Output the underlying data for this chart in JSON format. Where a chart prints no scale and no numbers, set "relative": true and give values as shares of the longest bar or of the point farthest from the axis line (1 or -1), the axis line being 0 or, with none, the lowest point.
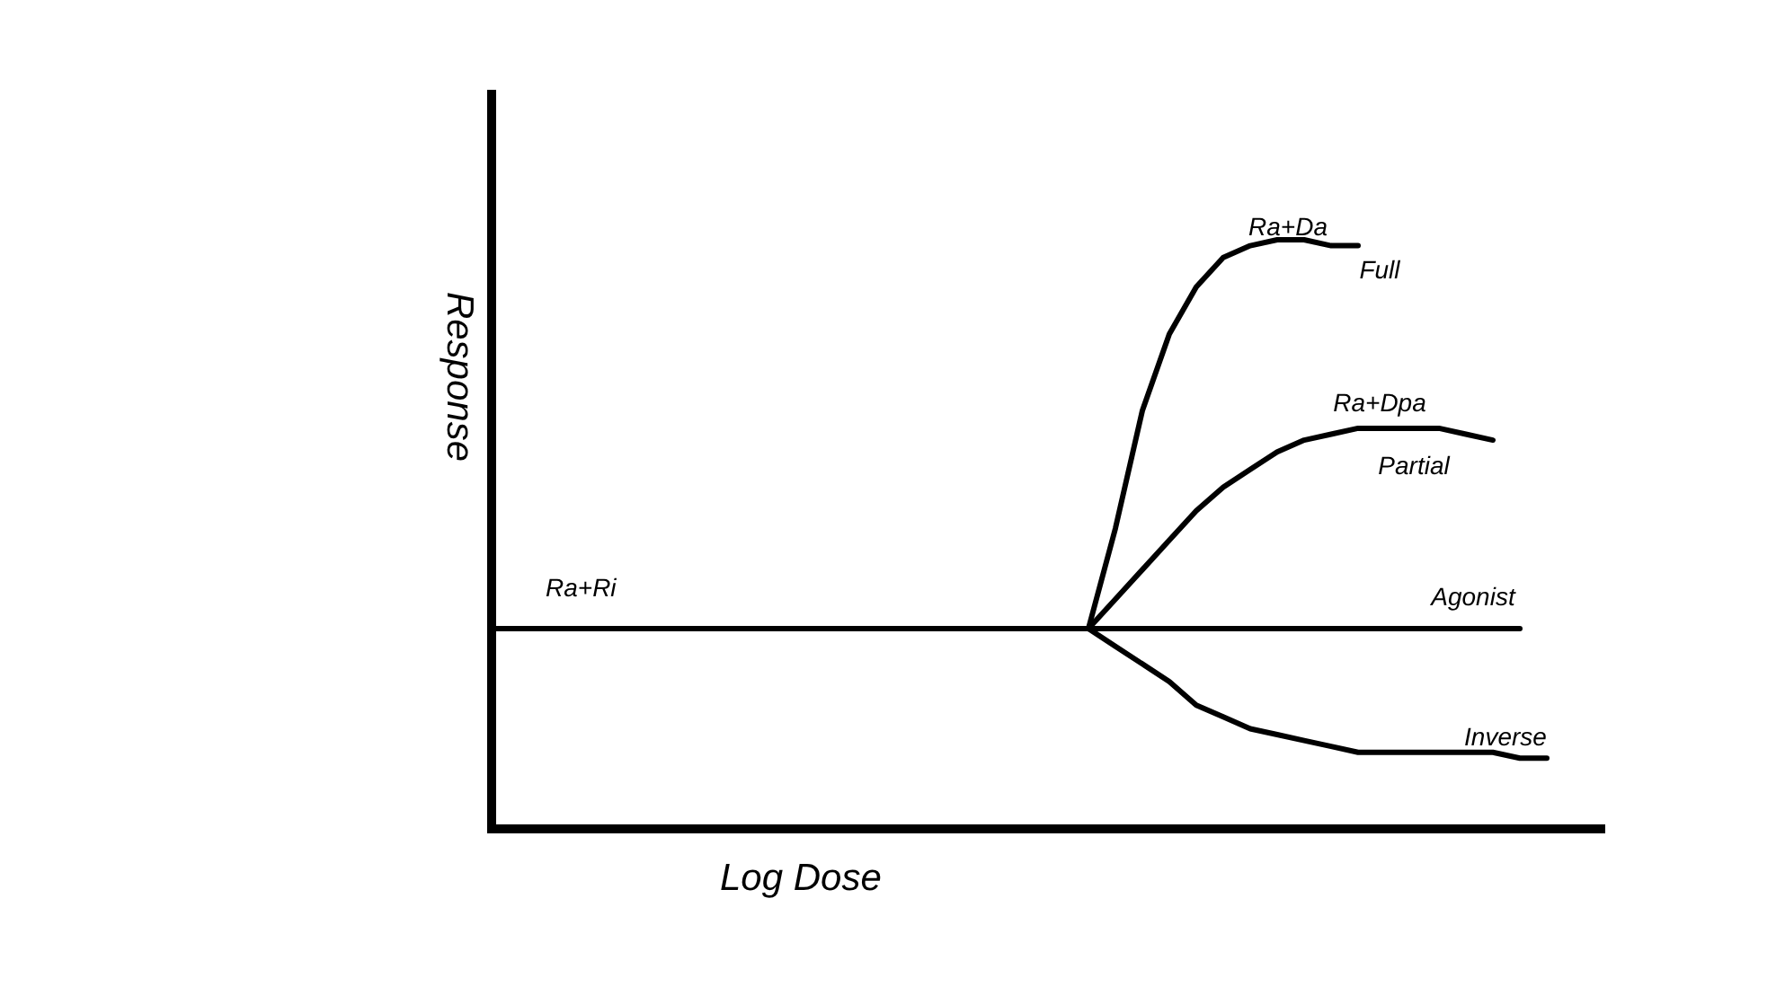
{
  "chart_data": {
    "type": "line",
    "relative": true,
    "xlabel": "Log Dose",
    "ylabel": "Response",
    "categories": [
      null,
      null,
      null,
      null,
      null,
      null,
      null,
      null,
      null,
      null,
      null,
      null,
      null,
      null,
      null,
      null,
      null,
      null,
      null,
      null,
      null,
      null,
      null,
      null,
      null,
      null,
      null,
      null,
      null,
      null,
      null,
      null,
      null,
      null,
      null,
      null,
      null,
      null,
      null,
      null
    ],
    "series": [
      {
        "name": "Ra+Ri",
        "color": "#000000",
        "values": [
          0.34,
          0.34,
          0.34,
          0.34,
          0.34,
          0.34,
          0.34,
          0.34,
          0.34,
          0.34,
          0.34,
          0.34,
          0.34,
          0.34,
          0.34,
          0.34,
          0.34,
          0.34,
          0.34,
          0.34,
          0.34,
          0.34,
          0.34,
          0.34,
          0.34,
          0.34,
          0.34,
          0.34,
          0.34,
          0.34,
          0.34,
          0.34,
          0.34,
          0.34,
          0.34,
          0.34,
          0.34,
          0.34,
          0.34,
          null
        ]
      },
      {
        "name": "Full",
        "color": "#000000",
        "values": [
          null,
          null,
          null,
          null,
          null,
          null,
          null,
          null,
          null,
          null,
          null,
          null,
          null,
          null,
          null,
          null,
          null,
          null,
          null,
          null,
          null,
          null,
          0.34,
          0.51,
          0.71,
          0.84,
          0.92,
          0.97,
          0.99,
          1.0,
          1.0,
          0.99,
          0.99,
          null,
          null,
          null,
          null,
          null,
          null,
          null
        ]
      },
      {
        "name": "Partial",
        "color": "#000000",
        "values": [
          null,
          null,
          null,
          null,
          null,
          null,
          null,
          null,
          null,
          null,
          null,
          null,
          null,
          null,
          null,
          null,
          null,
          null,
          null,
          null,
          null,
          null,
          0.34,
          0.39,
          0.44,
          0.49,
          0.54,
          0.58,
          0.61,
          0.64,
          0.66,
          0.67,
          0.68,
          0.68,
          0.68,
          0.68,
          0.67,
          0.66,
          null,
          null
        ]
      },
      {
        "name": "Inverse",
        "color": "#000000",
        "values": [
          null,
          null,
          null,
          null,
          null,
          null,
          null,
          null,
          null,
          null,
          null,
          null,
          null,
          null,
          null,
          null,
          null,
          null,
          null,
          null,
          null,
          null,
          0.34,
          0.31,
          0.28,
          0.25,
          0.21,
          0.19,
          0.17,
          0.16,
          0.15,
          0.14,
          0.13,
          0.13,
          0.13,
          0.13,
          0.13,
          0.13,
          0.12,
          0.12
        ]
      }
    ],
    "annotations": [
      "Ra+Da",
      "Ra+Dpa",
      "Agonist"
    ]
  }
}
